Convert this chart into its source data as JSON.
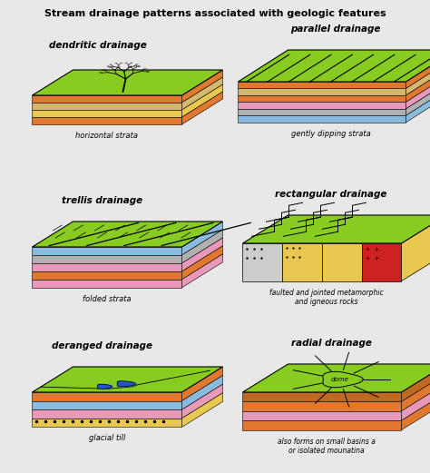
{
  "title": "Stream drainage patterns associated with geologic features",
  "background_color": "#e8e8e8",
  "panels": [
    {
      "title": "dendritic drainage",
      "subtitle": "horizontal strata",
      "row": 0,
      "col": 0
    },
    {
      "title": "parallel drainage",
      "subtitle": "gently dipping strata",
      "row": 0,
      "col": 1
    },
    {
      "title": "trellis drainage",
      "subtitle": "folded strata",
      "row": 1,
      "col": 0
    },
    {
      "title": "rectangular drainage",
      "subtitle": "faulted and jointed metamorphic\nand igneous rocks",
      "row": 1,
      "col": 1
    },
    {
      "title": "deranged drainage",
      "subtitle": "glacial till",
      "row": 2,
      "col": 0
    },
    {
      "title": "radial drainage",
      "subtitle": "also forms on small basins a\nor isolated mounatina",
      "row": 2,
      "col": 1
    }
  ],
  "colors": {
    "green": "#7dc832",
    "bright_green": "#88cc22",
    "orange": "#e07830",
    "yellow": "#e8c850",
    "pink": "#e898b8",
    "gray": "#b0b0b0",
    "blue": "#2255cc",
    "light_blue": "#88bbdd",
    "red": "#cc2222",
    "dark_green": "#508020",
    "brown": "#c06820",
    "tan": "#d4b870",
    "light_gray": "#cccccc"
  }
}
